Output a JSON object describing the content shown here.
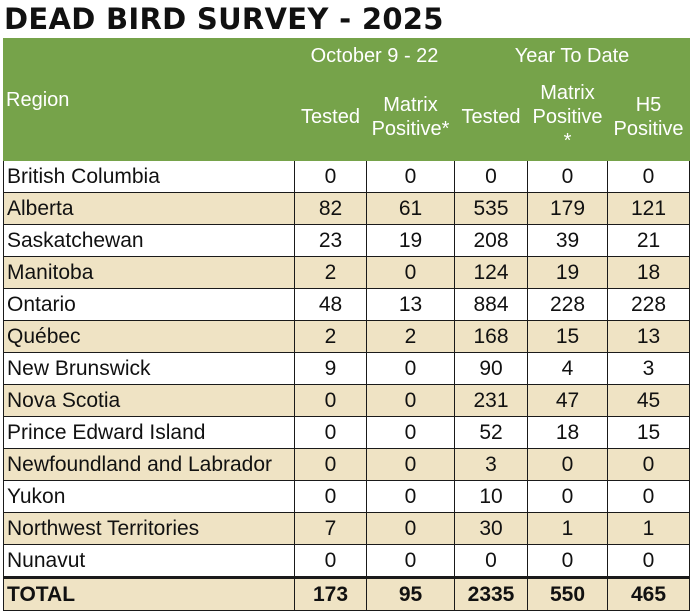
{
  "title": "DEAD BIRD SURVEY - 2025",
  "header": {
    "region": "Region",
    "period_group": "October 9 - 22",
    "ytd_group": "Year To Date",
    "columns": [
      "Tested",
      "Matrix Positive*",
      "Tested",
      "Matrix Positive *",
      "H5 Positive"
    ]
  },
  "rows": [
    {
      "region": "British Columbia",
      "values": [
        "0",
        "0",
        "0",
        "0",
        "0"
      ]
    },
    {
      "region": "Alberta",
      "values": [
        "82",
        "61",
        "535",
        "179",
        "121"
      ]
    },
    {
      "region": "Saskatchewan",
      "values": [
        "23",
        "19",
        "208",
        "39",
        "21"
      ]
    },
    {
      "region": "Manitoba",
      "values": [
        "2",
        "0",
        "124",
        "19",
        "18"
      ]
    },
    {
      "region": "Ontario",
      "values": [
        "48",
        "13",
        "884",
        "228",
        "228"
      ]
    },
    {
      "region": "Québec",
      "values": [
        "2",
        "2",
        "168",
        "15",
        "13"
      ]
    },
    {
      "region": "New Brunswick",
      "values": [
        "9",
        "0",
        "90",
        "4",
        "3"
      ]
    },
    {
      "region": "Nova Scotia",
      "values": [
        "0",
        "0",
        "231",
        "47",
        "45"
      ]
    },
    {
      "region": "Prince Edward Island",
      "values": [
        "0",
        "0",
        "52",
        "18",
        "15"
      ]
    },
    {
      "region": "Newfoundland and Labrador",
      "values": [
        "0",
        "0",
        "3",
        "0",
        "0"
      ]
    },
    {
      "region": "Yukon",
      "values": [
        "0",
        "0",
        "10",
        "0",
        "0"
      ]
    },
    {
      "region": "Northwest Territories",
      "values": [
        "7",
        "0",
        "30",
        "1",
        "1"
      ]
    },
    {
      "region": "Nunavut",
      "values": [
        "0",
        "0",
        "0",
        "0",
        "0"
      ]
    }
  ],
  "total": {
    "label": "TOTAL",
    "values": [
      "173",
      "95",
      "2335",
      "550",
      "465"
    ]
  },
  "colors": {
    "header_green": "#76a34a",
    "row_tan": "#efe3c4",
    "row_white": "#ffffff"
  }
}
